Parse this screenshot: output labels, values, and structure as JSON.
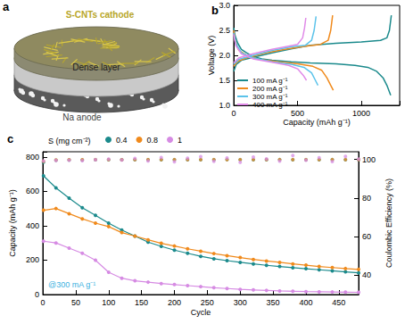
{
  "diagram": {
    "label": "a",
    "texts": [
      "S-CNTs cathode",
      "Dense layer",
      "Na anode"
    ]
  },
  "chart_data": [
    {
      "type": "line",
      "title": "b",
      "x_label": "Capacity (mAh g⁻¹)",
      "y_label": "Voltage (V)",
      "xlim": [
        0,
        1300
      ],
      "xticks": [
        0,
        500,
        1000
      ],
      "ylim": [
        1,
        3
      ],
      "yticks": [
        {
          "value": 1,
          "label": "1.0"
        },
        1.5,
        {
          "value": 2,
          "label": "2.0"
        },
        2.5,
        {
          "value": 3,
          "label": "3.0"
        }
      ],
      "grid": false,
      "legend": "lower left",
      "series": [
        {
          "name": "100 mA g⁻¹",
          "color": "#1b8a8c",
          "x": [
            0,
            10,
            30,
            60,
            100,
            150,
            220,
            300,
            450,
            600,
            800,
            950,
            1050,
            1120,
            1170,
            1200,
            1230,
            null,
            0,
            20,
            60,
            150,
            300,
            450,
            600,
            800,
            1000,
            1150,
            1200,
            1220,
            1235
          ],
          "values": [
            2.55,
            2.4,
            2.25,
            2.12,
            2.05,
            1.98,
            1.93,
            1.9,
            1.87,
            1.85,
            1.83,
            1.8,
            1.76,
            1.68,
            1.55,
            1.4,
            1.2,
            null,
            1.68,
            1.82,
            1.9,
            1.96,
            2.05,
            2.13,
            2.2,
            2.24,
            2.27,
            2.3,
            2.35,
            2.5,
            2.8
          ]
        },
        {
          "name": "200 mA g⁻¹",
          "color": "#f08a1c",
          "x": [
            0,
            10,
            40,
            100,
            200,
            350,
            500,
            620,
            690,
            730,
            760,
            780,
            null,
            0,
            30,
            100,
            250,
            400,
            550,
            680,
            740,
            760,
            775
          ],
          "values": [
            2.5,
            2.3,
            2.1,
            2.0,
            1.92,
            1.87,
            1.83,
            1.78,
            1.7,
            1.55,
            1.4,
            1.3,
            null,
            1.78,
            1.88,
            1.95,
            2.05,
            2.12,
            2.18,
            2.22,
            2.3,
            2.5,
            2.8
          ]
        },
        {
          "name": "300 mA g⁻¹",
          "color": "#5cc3ea",
          "x": [
            0,
            15,
            60,
            150,
            300,
            450,
            550,
            610,
            640,
            660,
            null,
            0,
            40,
            150,
            300,
            450,
            560,
            610,
            630,
            645
          ],
          "values": [
            2.45,
            2.25,
            2.05,
            1.95,
            1.87,
            1.82,
            1.76,
            1.65,
            1.5,
            1.4,
            null,
            1.82,
            1.92,
            2.0,
            2.1,
            2.17,
            2.2,
            2.3,
            2.5,
            2.78
          ]
        },
        {
          "name": "400 mA g⁻¹",
          "color": "#e08ae8",
          "x": [
            0,
            15,
            60,
            150,
            300,
            430,
            500,
            545,
            570,
            null,
            0,
            40,
            150,
            300,
            420,
            500,
            540,
            555,
            565
          ],
          "values": [
            2.42,
            2.2,
            2.03,
            1.93,
            1.86,
            1.8,
            1.73,
            1.6,
            1.5,
            null,
            1.85,
            1.95,
            2.03,
            2.12,
            2.18,
            2.22,
            2.35,
            2.55,
            2.75
          ]
        }
      ]
    },
    {
      "type": "line",
      "title": "c",
      "x_label": "Cycle",
      "y_label": "Capacity (mAh g⁻¹)",
      "y2_label": "Coulombic Efficiency (%)",
      "xlim": [
        0,
        480
      ],
      "xticks": [
        0,
        50,
        100,
        150,
        200,
        250,
        300,
        350,
        400,
        450
      ],
      "ylim": [
        0,
        830
      ],
      "yticks": [
        0,
        200,
        400,
        600,
        800
      ],
      "y2lim": [
        30,
        104
      ],
      "y2ticks": [
        40,
        60,
        80,
        100
      ],
      "grid": false,
      "legend": "upper left",
      "annotations": [
        "S (mg cm⁻²)",
        "@300 mA g⁻¹"
      ],
      "x": [
        1,
        20,
        40,
        60,
        80,
        100,
        120,
        140,
        160,
        180,
        200,
        220,
        240,
        260,
        280,
        300,
        320,
        340,
        360,
        380,
        400,
        420,
        440,
        460,
        480
      ],
      "series": [
        {
          "name": "0.4",
          "color": "#1b8a8c",
          "type": "line",
          "marker": "circle",
          "values": [
            690,
            620,
            560,
            505,
            460,
            415,
            375,
            340,
            305,
            280,
            258,
            240,
            222,
            208,
            197,
            187,
            178,
            170,
            163,
            156,
            150,
            144,
            138,
            132,
            126
          ]
        },
        {
          "name": "0.8",
          "color": "#f08a1c",
          "type": "line",
          "marker": "circle",
          "values": [
            490,
            500,
            470,
            440,
            415,
            395,
            360,
            340,
            318,
            298,
            282,
            266,
            252,
            238,
            226,
            215,
            204,
            195,
            187,
            178,
            171,
            163,
            157,
            151,
            146
          ]
        },
        {
          "name": "1",
          "color": "#d68be3",
          "type": "line",
          "marker": "circle",
          "values": [
            310,
            300,
            270,
            240,
            200,
            130,
            95,
            80,
            72,
            64,
            58,
            52,
            46,
            40,
            35,
            30,
            27,
            24,
            21,
            19,
            17,
            16,
            15,
            14,
            13
          ]
        },
        {
          "name": "0.4",
          "color": "#1b8a8c",
          "type": "scatter",
          "marker": "circle",
          "axis": "y2",
          "values": [
            98.5,
            99.6,
            99.7,
            99.7,
            99.8,
            99.8,
            99.8,
            99.8,
            99.8,
            99.8,
            99.8,
            99.8,
            99.8,
            99.8,
            99.9,
            99.8,
            99.8,
            99.8,
            99.9,
            99.8,
            99.8,
            99.8,
            99.9,
            99.8,
            99.8
          ]
        },
        {
          "name": "0.8",
          "color": "#f08a1c",
          "type": "scatter",
          "marker": "circle",
          "axis": "y2",
          "values": [
            99.0,
            99.7,
            99.8,
            99.8,
            99.9,
            99.9,
            99.8,
            99.9,
            99.9,
            99.9,
            99.9,
            99.9,
            99.9,
            99.9,
            99.9,
            99.9,
            99.9,
            99.9,
            99.9,
            99.9,
            99.9,
            99.9,
            99.9,
            99.9,
            99.9
          ]
        },
        {
          "name": "1",
          "color": "#d68be3",
          "type": "scatter",
          "marker": "circle",
          "axis": "y2",
          "values": [
            99.2,
            99.5,
            99.6,
            99.4,
            99.8,
            100.2,
            99.7,
            100.5,
            99.2,
            101.0,
            98.8,
            100.6,
            101.5,
            99.0,
            100.8,
            98.5,
            101.2,
            100.3,
            99.1,
            102.0,
            99.6,
            100.9,
            98.9,
            101.6,
            100.2
          ]
        }
      ]
    }
  ]
}
